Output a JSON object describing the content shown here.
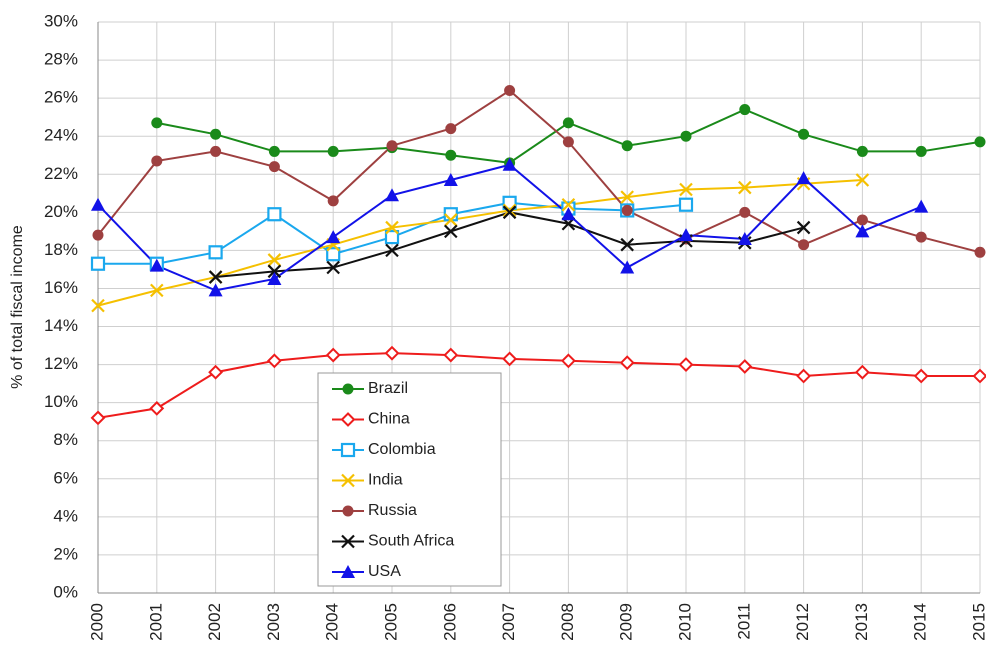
{
  "chart_data": {
    "type": "line",
    "y_label": "% of total fiscal income",
    "categories": [
      "2000",
      "2001",
      "2002",
      "2003",
      "2004",
      "2005",
      "2006",
      "2007",
      "2008",
      "2009",
      "2010",
      "2011",
      "2012",
      "2013",
      "2014",
      "2015"
    ],
    "ylim": [
      0,
      30
    ],
    "yticks": [
      {
        "value": 0,
        "label": "0%"
      },
      {
        "value": 2,
        "label": "2%"
      },
      {
        "value": 4,
        "label": "4%"
      },
      {
        "value": 6,
        "label": "6%"
      },
      {
        "value": 8,
        "label": "8%"
      },
      {
        "value": 10,
        "label": "10%"
      },
      {
        "value": 12,
        "label": "12%"
      },
      {
        "value": 14,
        "label": "14%"
      },
      {
        "value": 16,
        "label": "16%"
      },
      {
        "value": 18,
        "label": "18%"
      },
      {
        "value": 20,
        "label": "20%"
      },
      {
        "value": 22,
        "label": "22%"
      },
      {
        "value": 24,
        "label": "24%"
      },
      {
        "value": 26,
        "label": "26%"
      },
      {
        "value": 28,
        "label": "28%"
      },
      {
        "value": 30,
        "label": "30%"
      }
    ],
    "grid": true,
    "series": [
      {
        "name": "Brazil",
        "color": "#1a8a1a",
        "marker": "circle-filled",
        "values": [
          null,
          24.7,
          24.1,
          23.2,
          23.2,
          23.4,
          23.0,
          22.6,
          24.7,
          23.5,
          24.0,
          25.4,
          24.1,
          23.2,
          23.2,
          23.7
        ]
      },
      {
        "name": "China",
        "color": "#ee1c1c",
        "marker": "diamond-open",
        "values": [
          9.2,
          9.7,
          11.6,
          12.2,
          12.5,
          12.6,
          12.5,
          12.3,
          12.2,
          12.1,
          12.0,
          11.9,
          11.4,
          11.6,
          11.4,
          11.4
        ]
      },
      {
        "name": "Colombia",
        "color": "#1aa8ee",
        "marker": "square-open",
        "values": [
          17.3,
          17.3,
          17.9,
          19.9,
          17.8,
          18.7,
          19.9,
          20.5,
          20.2,
          20.1,
          20.4,
          null,
          null,
          null,
          null,
          null
        ]
      },
      {
        "name": "India",
        "color": "#f5c000",
        "marker": "x",
        "values": [
          15.1,
          15.9,
          16.6,
          17.5,
          18.3,
          19.2,
          19.6,
          20.1,
          20.4,
          20.8,
          21.2,
          21.3,
          21.5,
          21.7,
          null,
          null
        ]
      },
      {
        "name": "Russia",
        "color": "#9e4040",
        "marker": "circle-filled",
        "values": [
          18.8,
          22.7,
          23.2,
          22.4,
          20.6,
          23.5,
          24.4,
          26.4,
          23.7,
          20.1,
          18.6,
          20.0,
          18.3,
          19.6,
          18.7,
          17.9
        ]
      },
      {
        "name": "South Africa",
        "color": "#111111",
        "marker": "x",
        "values": [
          null,
          null,
          16.6,
          16.9,
          17.1,
          18.0,
          19.0,
          20.0,
          19.4,
          18.3,
          18.5,
          18.4,
          19.2,
          null,
          null,
          null
        ]
      },
      {
        "name": "USA",
        "color": "#1212e8",
        "marker": "triangle-filled",
        "values": [
          20.4,
          17.2,
          15.9,
          16.5,
          18.7,
          20.9,
          21.7,
          22.5,
          19.9,
          17.1,
          18.8,
          18.6,
          21.8,
          19.0,
          20.3,
          null
        ]
      }
    ]
  }
}
